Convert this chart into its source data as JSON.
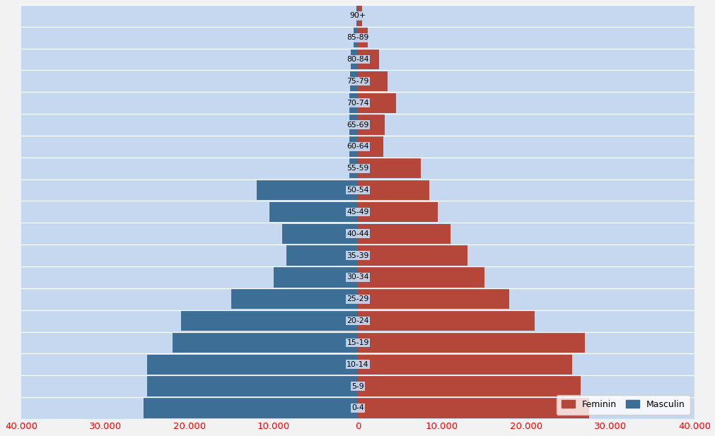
{
  "age_groups": [
    "0-4",
    "5-9",
    "10-14",
    "15-19",
    "20-24",
    "25-29",
    "30-34",
    "35-39",
    "40-44",
    "45-49",
    "50-54",
    "55-59",
    "60-64",
    "65-69",
    "70-74",
    "75-79",
    "80-84",
    "85-89",
    "90+"
  ],
  "feminin": [
    27500,
    26500,
    25500,
    27000,
    21000,
    18000,
    15000,
    13000,
    11000,
    9500,
    8500,
    7500,
    3000,
    3200,
    4500,
    3500,
    2500,
    1200,
    500
  ],
  "masculin": [
    25500,
    25000,
    25000,
    22000,
    21000,
    15000,
    10000,
    8500,
    9000,
    10500,
    12000,
    1000,
    1000,
    1000,
    1000,
    900,
    800,
    500,
    200
  ],
  "xlim_min": -40000,
  "xlim_max": 40000,
  "xtick_values": [
    -40000,
    -30000,
    -20000,
    -10000,
    0,
    10000,
    20000,
    30000,
    40000
  ],
  "xtick_labels": [
    "40.000",
    "30.000",
    "20.000",
    "10.000",
    "0",
    "10.000",
    "20.000",
    "30.000",
    "40.000"
  ],
  "bar_color_feminin": "#b5473a",
  "bar_color_masculin": "#3d6e96",
  "bg_plot": "#c5d8f0",
  "bg_fig": "#f2f2f2",
  "legend_feminin": "Feminin",
  "legend_masculin": "Masculin",
  "bar_height": 0.92,
  "label_fontsize": 7.8,
  "tick_fontsize": 9.5
}
